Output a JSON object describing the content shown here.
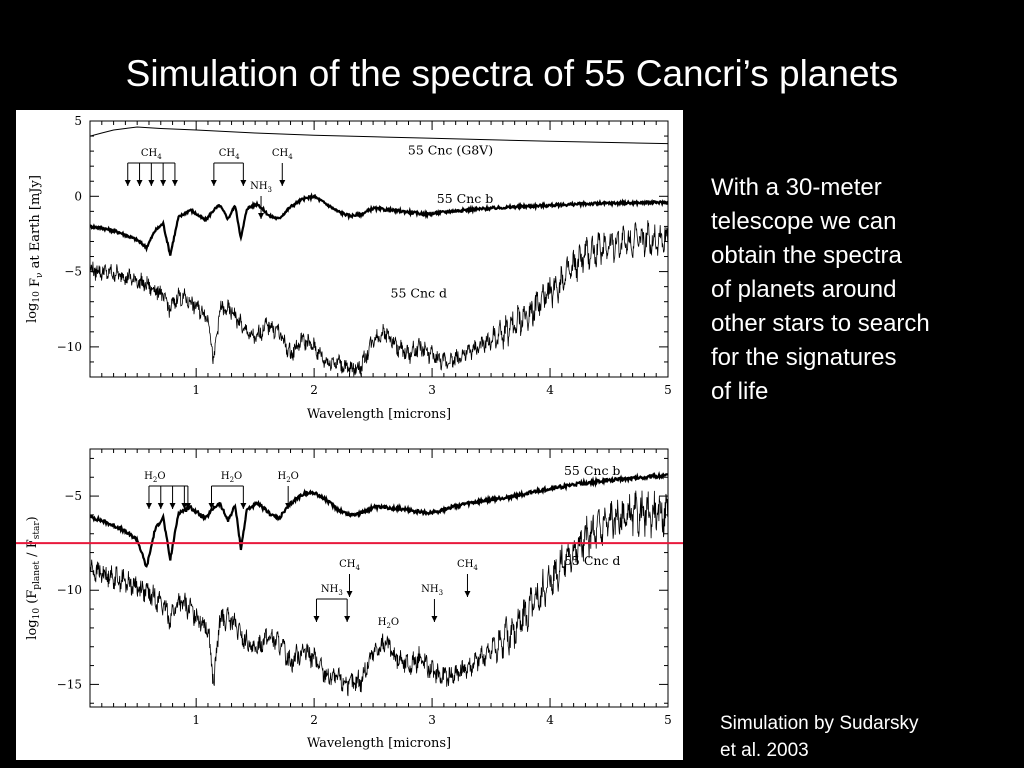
{
  "slide": {
    "title": "Simulation of the spectra of 55 Cancri’s planets",
    "body_lines": [
      "With a 30-meter",
      "telescope we can",
      "obtain the spectra",
      "of planets around",
      "other stars to search",
      "for the signatures",
      "of life"
    ],
    "credit_lines": [
      "Simulation by Sudarsky",
      "et al. 2003"
    ]
  },
  "chart_data": [
    {
      "type": "line",
      "xlabel": "Wavelength  [microns]",
      "ylabel": "log10 Fν at Earth [mJy]",
      "ylabel_parts": {
        "main": "log",
        "sub10": "10",
        "f": "F",
        "nu": "ν",
        "rest": " at Earth [mJy]"
      },
      "xlim": [
        0.1,
        5.0
      ],
      "ylim": [
        -12,
        5
      ],
      "xticks": [
        1,
        2,
        3,
        4,
        5
      ],
      "yticks": [
        5,
        0,
        -5,
        -10
      ],
      "series": [
        {
          "name": "55 Cnc (G8V)",
          "style": "thin",
          "x": [
            0.1,
            0.2,
            0.3,
            0.4,
            0.5,
            0.7,
            1.0,
            1.5,
            2.0,
            2.5,
            3.0,
            4.0,
            5.0
          ],
          "y": [
            4.0,
            4.2,
            4.4,
            4.5,
            4.6,
            4.5,
            4.4,
            4.2,
            4.05,
            3.95,
            3.85,
            3.65,
            3.5
          ]
        },
        {
          "name": "55 Cnc b",
          "style": "thick",
          "x": [
            0.1,
            0.2,
            0.35,
            0.5,
            0.58,
            0.65,
            0.72,
            0.78,
            0.85,
            0.95,
            1.08,
            1.15,
            1.2,
            1.27,
            1.33,
            1.38,
            1.43,
            1.52,
            1.62,
            1.7,
            1.8,
            1.9,
            2.0,
            2.1,
            2.2,
            2.3,
            2.4,
            2.5,
            2.62,
            2.75,
            2.85,
            2.95,
            3.05,
            3.15,
            3.3,
            3.5,
            3.7,
            4.0,
            4.3,
            4.6,
            5.0
          ],
          "y": [
            -2.0,
            -2.1,
            -2.4,
            -2.9,
            -3.4,
            -2.3,
            -1.8,
            -3.9,
            -1.4,
            -0.9,
            -1.6,
            -0.9,
            -0.6,
            -1.5,
            -0.6,
            -2.8,
            -0.8,
            -0.5,
            -1.3,
            -1.5,
            -0.7,
            -0.2,
            0.0,
            -0.5,
            -1.0,
            -1.3,
            -1.2,
            -0.8,
            -0.9,
            -1.0,
            -1.1,
            -1.2,
            -1.1,
            -1.0,
            -0.9,
            -0.8,
            -0.7,
            -0.6,
            -0.5,
            -0.45,
            -0.4
          ]
        },
        {
          "name": "55 Cnc d",
          "style": "noisy",
          "x": [
            0.1,
            0.2,
            0.35,
            0.5,
            0.6,
            0.7,
            0.78,
            0.85,
            0.95,
            1.1,
            1.15,
            1.2,
            1.3,
            1.4,
            1.5,
            1.6,
            1.7,
            1.8,
            1.9,
            2.0,
            2.1,
            2.2,
            2.3,
            2.4,
            2.5,
            2.6,
            2.7,
            2.8,
            2.9,
            3.0,
            3.1,
            3.2,
            3.3,
            3.5,
            3.7,
            3.9,
            4.1,
            4.3,
            4.5,
            4.7,
            5.0
          ],
          "y": [
            -4.9,
            -5.0,
            -5.2,
            -5.6,
            -6.0,
            -6.4,
            -7.5,
            -6.6,
            -7.0,
            -8.0,
            -11.0,
            -7.5,
            -7.6,
            -8.8,
            -9.5,
            -8.5,
            -9.0,
            -10.5,
            -9.5,
            -10.0,
            -11.0,
            -11.0,
            -11.5,
            -11.3,
            -9.5,
            -9.0,
            -10.0,
            -10.5,
            -10.0,
            -10.6,
            -11.0,
            -10.8,
            -10.4,
            -9.6,
            -8.6,
            -7.2,
            -5.6,
            -3.9,
            -3.2,
            -2.9,
            -2.8
          ]
        }
      ],
      "annotations": [
        {
          "text": "CH",
          "sub": "4",
          "x": 0.62
        },
        {
          "text": "CH",
          "sub": "4",
          "x": 1.28
        },
        {
          "text": "CH",
          "sub": "4",
          "x": 1.73
        },
        {
          "text": "NH",
          "sub": "3",
          "x": 1.55
        }
      ],
      "series_labels": [
        {
          "text": "55 Cnc (G8V)",
          "series": 0
        },
        {
          "text": "55 Cnc b",
          "series": 1
        },
        {
          "text": "55 Cnc d",
          "series": 2
        }
      ]
    },
    {
      "type": "line",
      "xlabel": "Wavelength  [microns]",
      "ylabel": "log10 (Fplanet / Fstar)",
      "ylabel_parts": {
        "main": "log",
        "sub10": "10",
        "open": " (F",
        "planet": "planet",
        "mid": " / F",
        "star": "star",
        "close": ")"
      },
      "xlim": [
        0.1,
        5.0
      ],
      "ylim": [
        -16.2,
        -2.5
      ],
      "xticks": [
        1,
        2,
        3,
        4,
        5
      ],
      "yticks": [
        -5,
        -10,
        -15
      ],
      "reference_line": {
        "y": -7.5,
        "color": "#e8193c"
      },
      "series": [
        {
          "name": "55 Cnc b",
          "style": "thick",
          "x": [
            0.1,
            0.2,
            0.35,
            0.5,
            0.58,
            0.65,
            0.72,
            0.78,
            0.85,
            0.95,
            1.08,
            1.15,
            1.2,
            1.27,
            1.33,
            1.38,
            1.43,
            1.52,
            1.62,
            1.7,
            1.8,
            1.9,
            2.0,
            2.1,
            2.2,
            2.3,
            2.4,
            2.5,
            2.62,
            2.75,
            2.85,
            2.95,
            3.05,
            3.15,
            3.3,
            3.5,
            3.7,
            4.0,
            4.3,
            4.6,
            5.0
          ],
          "y": [
            -6.1,
            -6.3,
            -6.7,
            -7.3,
            -8.8,
            -6.8,
            -6.1,
            -8.4,
            -5.9,
            -5.6,
            -6.2,
            -5.6,
            -5.4,
            -6.3,
            -5.5,
            -7.8,
            -5.7,
            -5.4,
            -5.9,
            -6.2,
            -5.4,
            -4.9,
            -4.8,
            -5.2,
            -5.7,
            -6.0,
            -5.9,
            -5.6,
            -5.6,
            -5.7,
            -5.8,
            -5.9,
            -5.8,
            -5.6,
            -5.4,
            -5.2,
            -5.0,
            -4.6,
            -4.3,
            -4.1,
            -3.9
          ]
        },
        {
          "name": "55 Cnc d",
          "style": "noisy",
          "x": [
            0.1,
            0.2,
            0.35,
            0.5,
            0.6,
            0.7,
            0.78,
            0.85,
            0.95,
            1.1,
            1.15,
            1.2,
            1.3,
            1.4,
            1.5,
            1.6,
            1.7,
            1.8,
            1.9,
            2.0,
            2.1,
            2.2,
            2.3,
            2.4,
            2.5,
            2.6,
            2.7,
            2.8,
            2.9,
            3.0,
            3.1,
            3.2,
            3.3,
            3.5,
            3.7,
            3.9,
            4.1,
            4.3,
            4.5,
            4.7,
            5.0
          ],
          "y": [
            -8.9,
            -9.1,
            -9.4,
            -9.8,
            -10.2,
            -10.6,
            -11.5,
            -10.6,
            -11.0,
            -12.0,
            -15.0,
            -11.5,
            -11.6,
            -12.6,
            -13.2,
            -12.4,
            -12.8,
            -13.8,
            -13.2,
            -13.6,
            -14.5,
            -14.7,
            -15.0,
            -14.8,
            -13.3,
            -12.8,
            -13.6,
            -14.0,
            -13.6,
            -14.3,
            -14.6,
            -14.4,
            -14.1,
            -13.2,
            -12.1,
            -10.4,
            -8.6,
            -7.3,
            -6.3,
            -6.0,
            -5.9
          ]
        }
      ],
      "annotations": [
        {
          "text": "H",
          "sub": "2",
          "after": "O",
          "x": 0.65
        },
        {
          "text": "H",
          "sub": "2",
          "after": "O",
          "x": 1.3
        },
        {
          "text": "H",
          "sub": "2",
          "after": "O",
          "x": 1.78
        },
        {
          "text": "CH",
          "sub": "4",
          "x": 2.3
        },
        {
          "text": "CH",
          "sub": "4",
          "x": 3.3
        },
        {
          "text": "NH",
          "sub": "3",
          "x": 2.15
        },
        {
          "text": "NH",
          "sub": "3",
          "x": 3.0
        },
        {
          "text": "H",
          "sub": "2",
          "after": "O",
          "x": 2.63
        }
      ],
      "series_labels": [
        {
          "text": "55 Cnc b",
          "series": 0
        },
        {
          "text": "55 Cnc d",
          "series": 1
        }
      ]
    }
  ]
}
